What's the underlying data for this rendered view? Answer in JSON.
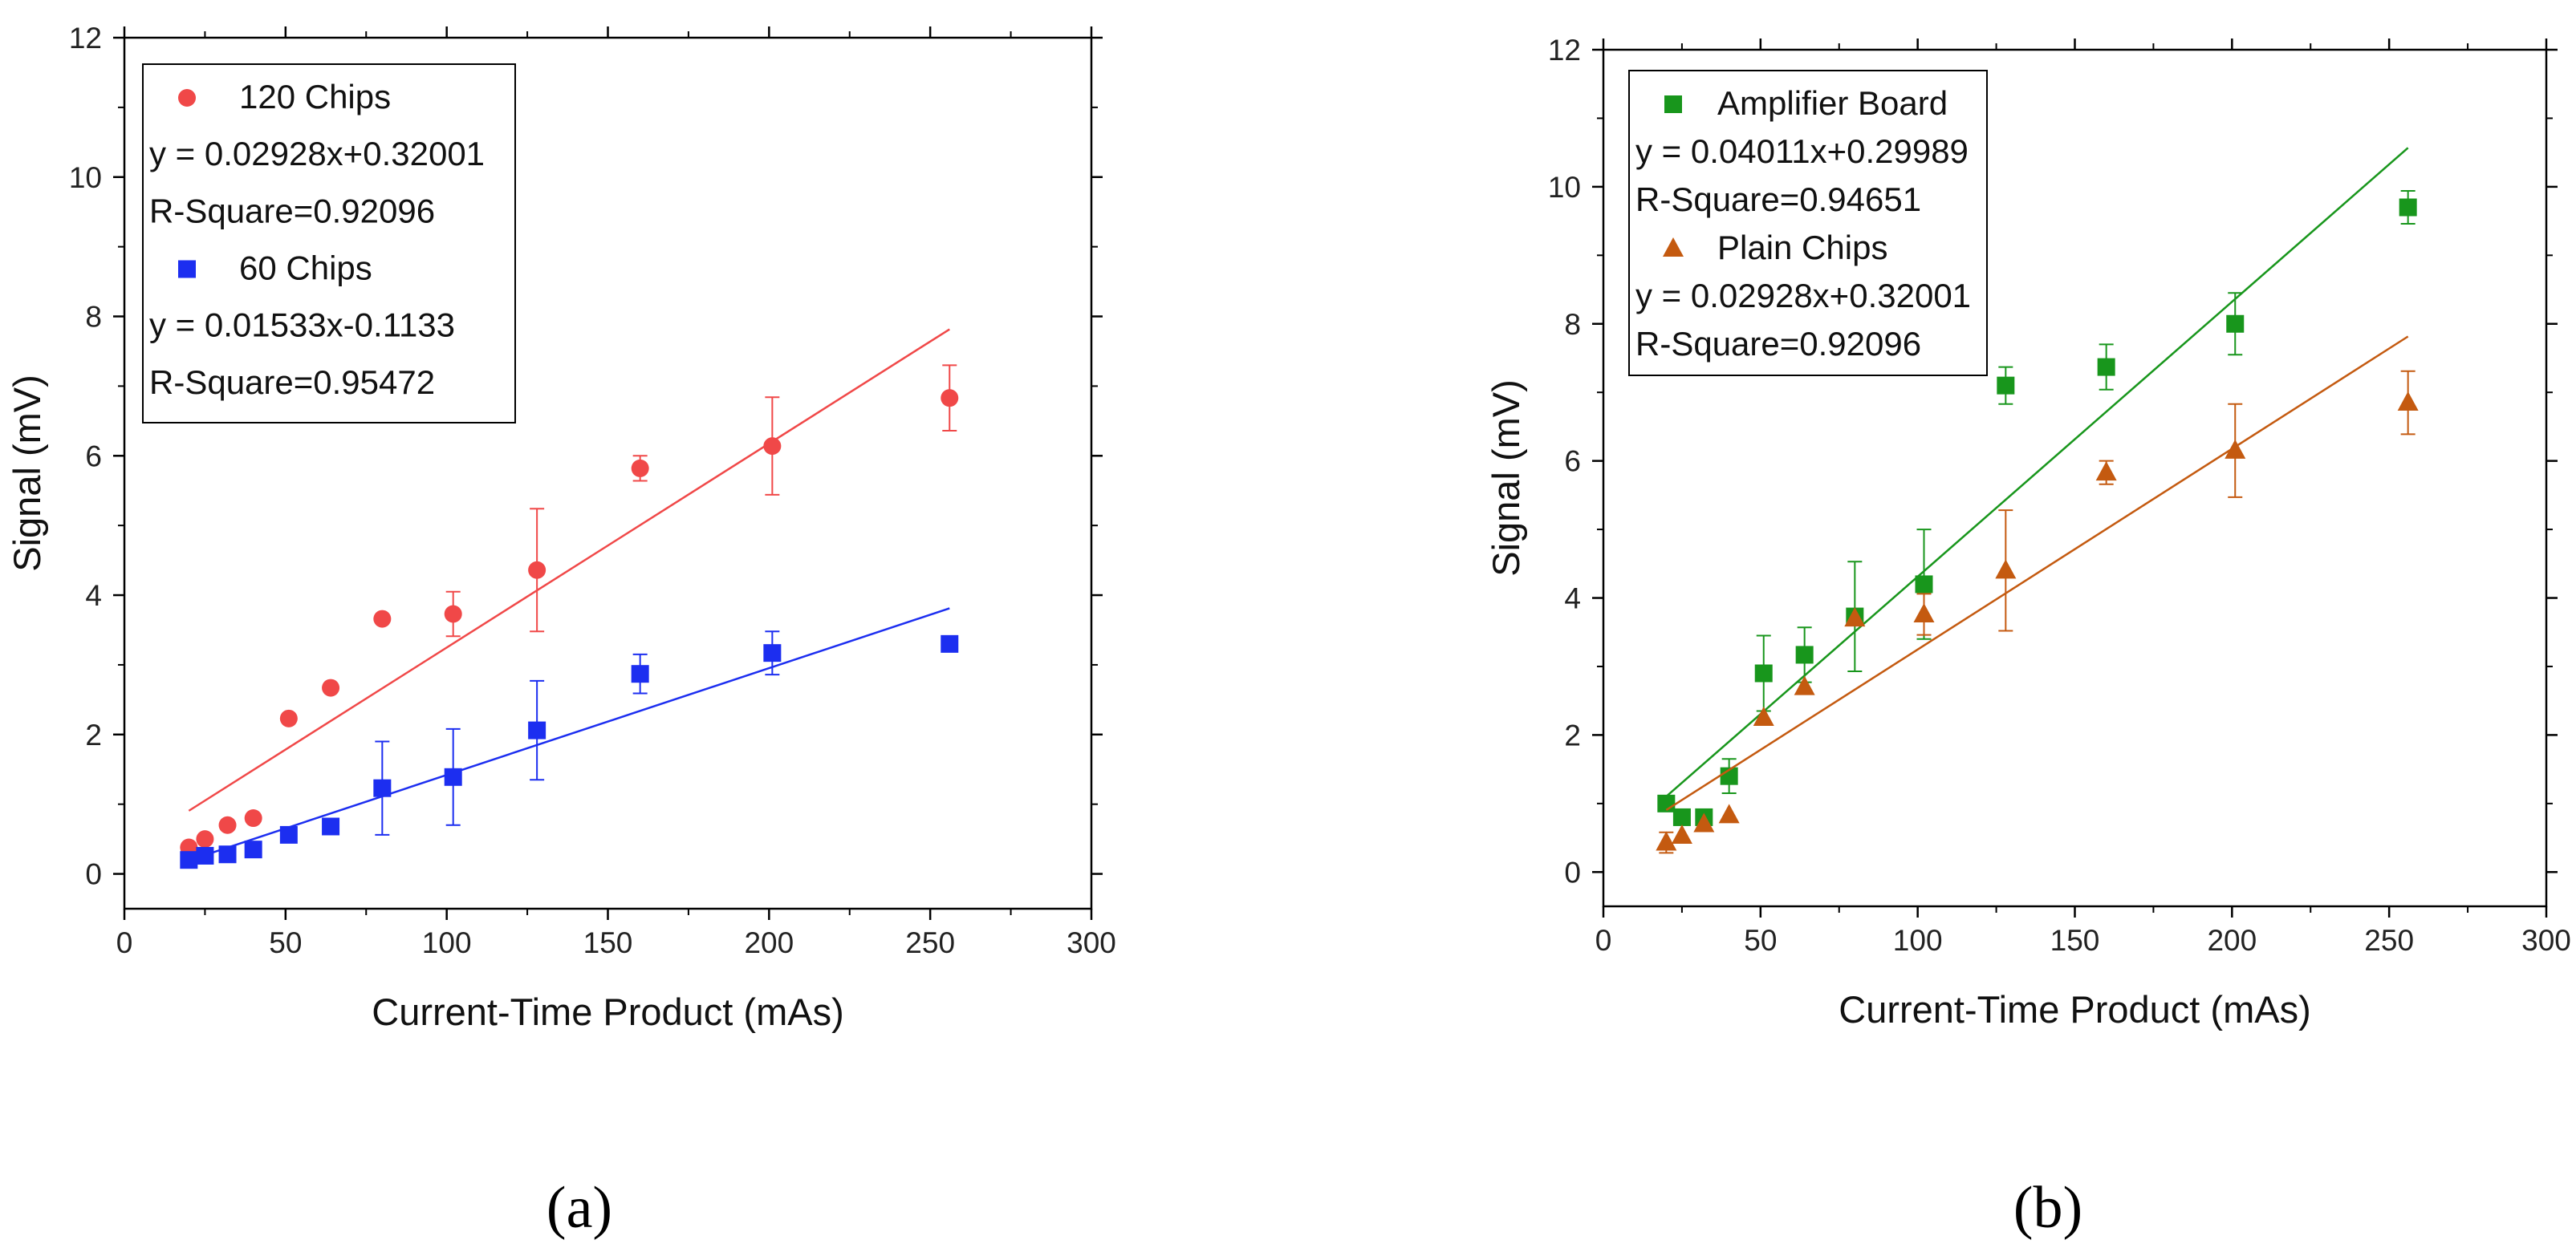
{
  "chart_data": [
    {
      "type": "scatter",
      "panel_label": "(a)",
      "xlabel": "Current-Time Product (mAs)",
      "ylabel": "Signal (mV)",
      "xlim": [
        0,
        300
      ],
      "ylim": [
        -0.5,
        12
      ],
      "xticks": [
        "0",
        "50",
        "100",
        "150",
        "200",
        "250",
        "300"
      ],
      "yticks": [
        "0",
        "2",
        "4",
        "6",
        "8",
        "10",
        "12"
      ],
      "legend_position": "top-left",
      "series": [
        {
          "name": "120 Chips",
          "marker": "circle",
          "color": "#f04848",
          "x": [
            20,
            25,
            32,
            40,
            51,
            64,
            80,
            102,
            128,
            160,
            201,
            256
          ],
          "y": [
            0.38,
            0.5,
            0.7,
            0.8,
            2.23,
            2.67,
            3.66,
            3.73,
            4.36,
            5.82,
            6.14,
            6.83
          ],
          "err": [
            0,
            0,
            0,
            0,
            0,
            0,
            0,
            0.32,
            0.88,
            0.18,
            0.7,
            0.47
          ],
          "fit": {
            "slope": 0.02928,
            "intercept": 0.32001,
            "x_range": [
              20,
              256
            ]
          },
          "equation": "y = 0.02928x+0.32001",
          "r_square": "R-Square=0.92096"
        },
        {
          "name": "60 Chips",
          "marker": "square",
          "color": "#1c2ef0",
          "x": [
            20,
            25,
            32,
            40,
            51,
            64,
            80,
            102,
            128,
            160,
            201,
            256
          ],
          "y": [
            0.2,
            0.26,
            0.28,
            0.35,
            0.56,
            0.68,
            1.23,
            1.39,
            2.06,
            2.87,
            3.17,
            3.3
          ],
          "err": [
            0,
            0,
            0,
            0,
            0,
            0,
            0.67,
            0.69,
            0.71,
            0.28,
            0.31,
            0
          ],
          "fit": {
            "slope": 0.01533,
            "intercept": -0.1133,
            "x_range": [
              20,
              256
            ]
          },
          "equation": "y = 0.01533x-0.1133",
          "r_square": "R-Square=0.95472"
        }
      ]
    },
    {
      "type": "scatter",
      "panel_label": "(b)",
      "xlabel": "Current-Time Product (mAs)",
      "ylabel": "Signal (mV)",
      "xlim": [
        0,
        300
      ],
      "ylim": [
        -0.5,
        12
      ],
      "xticks": [
        "0",
        "50",
        "100",
        "150",
        "200",
        "250",
        "300"
      ],
      "yticks": [
        "0",
        "2",
        "4",
        "6",
        "8",
        "10",
        "12"
      ],
      "legend_position": "top-left",
      "series": [
        {
          "name": "Amplifier Board",
          "marker": "square",
          "color": "#18961c",
          "x": [
            20,
            25,
            32,
            40,
            51,
            64,
            80,
            102,
            128,
            160,
            201,
            256
          ],
          "y": [
            1.0,
            0.8,
            0.8,
            1.4,
            2.9,
            3.17,
            3.73,
            4.2,
            7.1,
            7.37,
            8.0,
            9.7
          ],
          "err": [
            0,
            0,
            0,
            0.25,
            0.55,
            0.4,
            0.8,
            0.8,
            0.27,
            0.33,
            0.45,
            0.24
          ],
          "fit": {
            "slope": 0.04011,
            "intercept": 0.29989,
            "x_range": [
              20,
              256
            ]
          },
          "equation": "y = 0.04011x+0.29989",
          "r_square": "R-Square=0.94651"
        },
        {
          "name": "Plain Chips",
          "marker": "triangle",
          "color": "#c45a10",
          "x": [
            20,
            25,
            32,
            40,
            51,
            64,
            80,
            102,
            128,
            160,
            201,
            256
          ],
          "y": [
            0.43,
            0.53,
            0.7,
            0.83,
            2.25,
            2.7,
            3.7,
            3.76,
            4.4,
            5.83,
            6.15,
            6.85
          ],
          "err": [
            0.15,
            0,
            0,
            0,
            0,
            0,
            0,
            0.3,
            0.88,
            0.17,
            0.68,
            0.46
          ],
          "fit": {
            "slope": 0.02928,
            "intercept": 0.32001,
            "x_range": [
              20,
              256
            ]
          },
          "equation": "y = 0.02928x+0.32001",
          "r_square": "R-Square=0.92096"
        }
      ]
    }
  ]
}
